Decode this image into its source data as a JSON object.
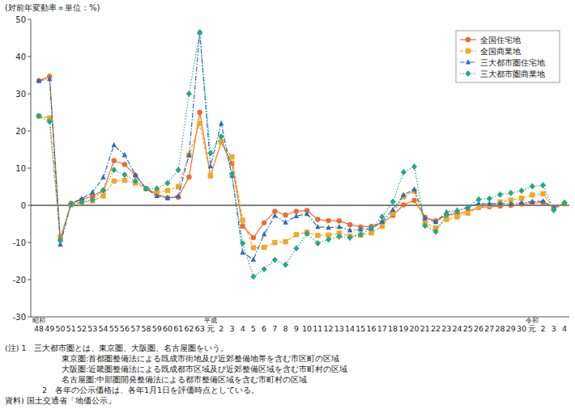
{
  "chart_data": {
    "type": "line",
    "y_label": "(対前年変動率＝単位：%)",
    "categories": [
      "昭和\n48",
      "49",
      "50",
      "51",
      "52",
      "53",
      "54",
      "55",
      "56",
      "57",
      "58",
      "59",
      "60",
      "61",
      "62",
      "63",
      "平成\n元",
      "2",
      "3",
      "4",
      "5",
      "6",
      "7",
      "8",
      "9",
      "10",
      "11",
      "12",
      "13",
      "14",
      "15",
      "16",
      "17",
      "18",
      "19",
      "20",
      "21",
      "22",
      "23",
      "24",
      "25",
      "26",
      "27",
      "28",
      "29",
      "30",
      "令和\n元",
      "2",
      "3",
      "4"
    ],
    "series": [
      {
        "name": "全国住宅地",
        "color": "#ee6a2e",
        "marker": "circle",
        "line_style": "solid",
        "values": [
          33.5,
          34.7,
          -9.2,
          0.5,
          1.5,
          2.5,
          4.0,
          12.0,
          11.0,
          8.0,
          4.5,
          3.0,
          2.0,
          2.2,
          7.6,
          25.0,
          7.9,
          17.0,
          11.3,
          -5.6,
          -8.7,
          -4.7,
          -1.6,
          -2.6,
          -1.6,
          -1.4,
          -3.8,
          -4.1,
          -4.2,
          -5.2,
          -5.8,
          -5.7,
          -4.6,
          -2.7,
          0.1,
          1.3,
          -3.2,
          -4.2,
          -2.7,
          -2.3,
          -1.6,
          -0.6,
          -0.4,
          -0.2,
          0.0,
          0.3,
          0.6,
          0.8,
          -0.4,
          0.5
        ]
      },
      {
        "name": "全国商業地",
        "color": "#f5a623",
        "marker": "square",
        "line_style": "dashed",
        "values": [
          24.0,
          23.5,
          -8.5,
          0.1,
          0.8,
          1.2,
          2.5,
          6.5,
          6.7,
          6.0,
          4.5,
          3.5,
          4.0,
          5.0,
          13.5,
          22.0,
          8.0,
          17.0,
          13.0,
          -4.0,
          -11.4,
          -11.3,
          -10.0,
          -9.8,
          -7.9,
          -7.2,
          -8.1,
          -8.0,
          -7.5,
          -8.3,
          -8.0,
          -7.4,
          -5.6,
          -2.1,
          2.3,
          3.8,
          -4.7,
          -6.1,
          -3.8,
          -3.1,
          -2.1,
          -0.5,
          0.0,
          0.9,
          1.4,
          1.9,
          2.8,
          3.1,
          -0.8,
          0.4
        ]
      },
      {
        "name": "三大都市圏住宅地",
        "color": "#2a6ebb",
        "marker": "triangle",
        "line_style": "dashdot",
        "values": [
          33.5,
          34.0,
          -10.5,
          0.5,
          1.8,
          3.5,
          7.5,
          16.2,
          13.5,
          8.2,
          4.5,
          2.5,
          2.0,
          2.5,
          13.5,
          46.5,
          10.5,
          22.0,
          8.0,
          -12.7,
          -14.6,
          -7.8,
          -2.8,
          -4.6,
          -2.9,
          -2.3,
          -5.8,
          -6.0,
          -5.8,
          -6.7,
          -6.5,
          -6.3,
          -4.4,
          -1.2,
          2.8,
          4.3,
          -3.5,
          -4.5,
          -1.8,
          -1.3,
          -0.6,
          0.5,
          0.4,
          0.5,
          0.4,
          0.7,
          1.0,
          1.1,
          -0.6,
          0.5
        ]
      },
      {
        "name": "三大都市圏商業地",
        "color": "#27a884",
        "marker": "diamond",
        "line_style": "dotted",
        "values": [
          24.0,
          22.5,
          -9.5,
          0.3,
          0.8,
          1.5,
          4.0,
          9.5,
          8.2,
          6.5,
          4.5,
          4.5,
          6.0,
          9.5,
          30.0,
          46.5,
          14.0,
          18.5,
          8.5,
          -10.2,
          -19.2,
          -17.2,
          -14.7,
          -16.0,
          -11.6,
          -7.6,
          -10.2,
          -9.2,
          -8.4,
          -8.7,
          -7.9,
          -6.1,
          -3.1,
          1.0,
          8.9,
          10.4,
          -5.5,
          -7.1,
          -2.5,
          -1.6,
          -0.5,
          1.6,
          1.8,
          2.9,
          3.3,
          3.9,
          5.1,
          5.4,
          -1.3,
          0.7
        ]
      }
    ],
    "ylim": [
      -30,
      50
    ],
    "yticks": [
      -30,
      -20,
      -10,
      0,
      10,
      20,
      30,
      40,
      50
    ],
    "grid": false,
    "legend": "top-right",
    "notes": [
      "(注)  1　三大都市圏とは、東京圏、大阪圏、名古屋圏をいう。",
      "東京圏:首都圏整備法による既成市街地及び近郊整備地帯を含む市区町の区域",
      "大阪圏:近畿圏整備法による既成都市区域及び近郊整備区域を含む市町村の区域",
      "名古屋圏:中部圏開発整備法による都市整備区域を含む市町村の区域",
      "2　各年の公示価格は、各年1月1日を評価時点としている。"
    ],
    "source": "資料)  国土交通省「地価公示」"
  }
}
